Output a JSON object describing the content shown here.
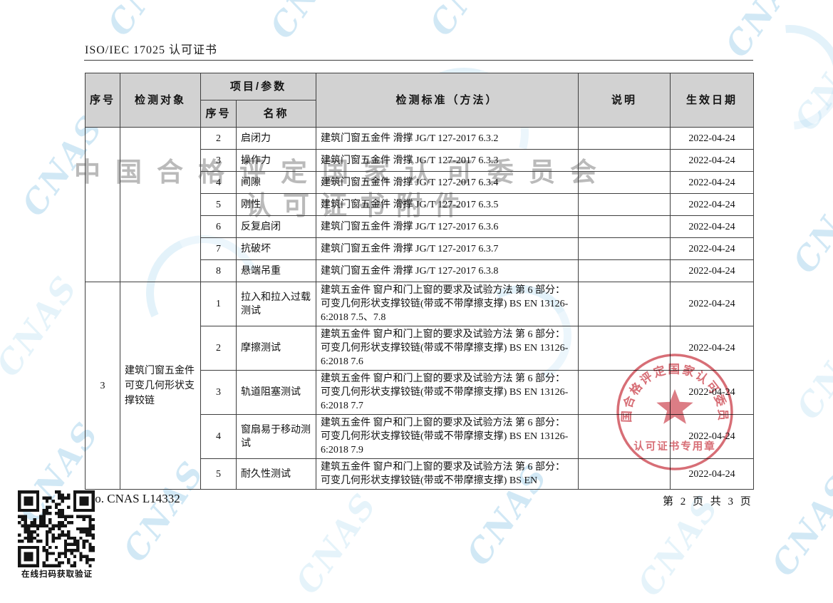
{
  "page": {
    "doc_title": "ISO/IEC 17025 认可证书",
    "certificate_no": "No. CNAS L14332",
    "page_info": "第 2 页 共 3 页",
    "qr_caption": "在线扫码获取验证"
  },
  "watermarks": {
    "cnas_text": "CNAS",
    "org_line1": "中国合格评定国家认可委员会",
    "org_line2": "认可证书附件",
    "stamp": {
      "arc_text": "中国合格评定国家认可委员会",
      "bottom_text": "认可证书专用章",
      "color": "#cf4e57"
    }
  },
  "table": {
    "header": {
      "no": "序号",
      "object": "检测对象",
      "item_param": "项目/参数",
      "item_no": "序号",
      "item_name": "名称",
      "standard": "检测标准（方法）",
      "note": "说明",
      "effective_date": "生效日期"
    },
    "sections": [
      {
        "no": "",
        "object": "",
        "rows": [
          {
            "item_no": "2",
            "name": "启闭力",
            "standard": "建筑门窗五金件 滑撑 JG/T 127-2017 6.3.2",
            "note": "",
            "date": "2022-04-24"
          },
          {
            "item_no": "3",
            "name": "操作力",
            "standard": "建筑门窗五金件 滑撑 JG/T 127-2017 6.3.3",
            "note": "",
            "date": "2022-04-24"
          },
          {
            "item_no": "4",
            "name": "间隙",
            "standard": "建筑门窗五金件 滑撑 JG/T 127-2017 6.3.4",
            "note": "",
            "date": "2022-04-24"
          },
          {
            "item_no": "5",
            "name": "刚性",
            "standard": "建筑门窗五金件 滑撑 JG/T 127-2017 6.3.5",
            "note": "",
            "date": "2022-04-24"
          },
          {
            "item_no": "6",
            "name": "反复启闭",
            "standard": "建筑门窗五金件 滑撑 JG/T 127-2017 6.3.6",
            "note": "",
            "date": "2022-04-24"
          },
          {
            "item_no": "7",
            "name": "抗破坏",
            "standard": "建筑门窗五金件 滑撑 JG/T 127-2017 6.3.7",
            "note": "",
            "date": "2022-04-24"
          },
          {
            "item_no": "8",
            "name": "悬端吊重",
            "standard": "建筑门窗五金件 滑撑 JG/T 127-2017 6.3.8",
            "note": "",
            "date": "2022-04-24"
          }
        ]
      },
      {
        "no": "3",
        "object": "建筑门窗五金件 可变几何形状支撑铰链",
        "rows": [
          {
            "item_no": "1",
            "name": "拉入和拉入过载测试",
            "standard": "建筑五金件 窗户和门上窗的要求及试验方法 第 6 部分：可变几何形状支撑铰链(带或不带摩擦支撑) BS EN 13126-6:2018 7.5、7.8",
            "note": "",
            "date": "2022-04-24"
          },
          {
            "item_no": "2",
            "name": "摩擦测试",
            "standard": "建筑五金件 窗户和门上窗的要求及试验方法 第 6 部分：可变几何形状支撑铰链(带或不带摩擦支撑) BS EN 13126-6:2018 7.6",
            "note": "",
            "date": "2022-04-24"
          },
          {
            "item_no": "3",
            "name": "轨道阻塞测试",
            "standard": "建筑五金件 窗户和门上窗的要求及试验方法 第 6 部分：可变几何形状支撑铰链(带或不带摩擦支撑) BS EN 13126-6:2018 7.7",
            "note": "",
            "date": "2022-04-24"
          },
          {
            "item_no": "4",
            "name": "窗扇易于移动测试",
            "standard": "建筑五金件 窗户和门上窗的要求及试验方法 第 6 部分：可变几何形状支撑铰链(带或不带摩擦支撑) BS EN 13126-6:2018 7.9",
            "note": "",
            "date": "2022-04-24"
          },
          {
            "item_no": "5",
            "name": "耐久性测试",
            "standard": "建筑五金件 窗户和门上窗的要求及试验方法 第 6 部分：可变几何形状支撑铰链(带或不带摩擦支撑) BS EN",
            "note": "",
            "date": "2022-04-24"
          }
        ]
      }
    ]
  }
}
